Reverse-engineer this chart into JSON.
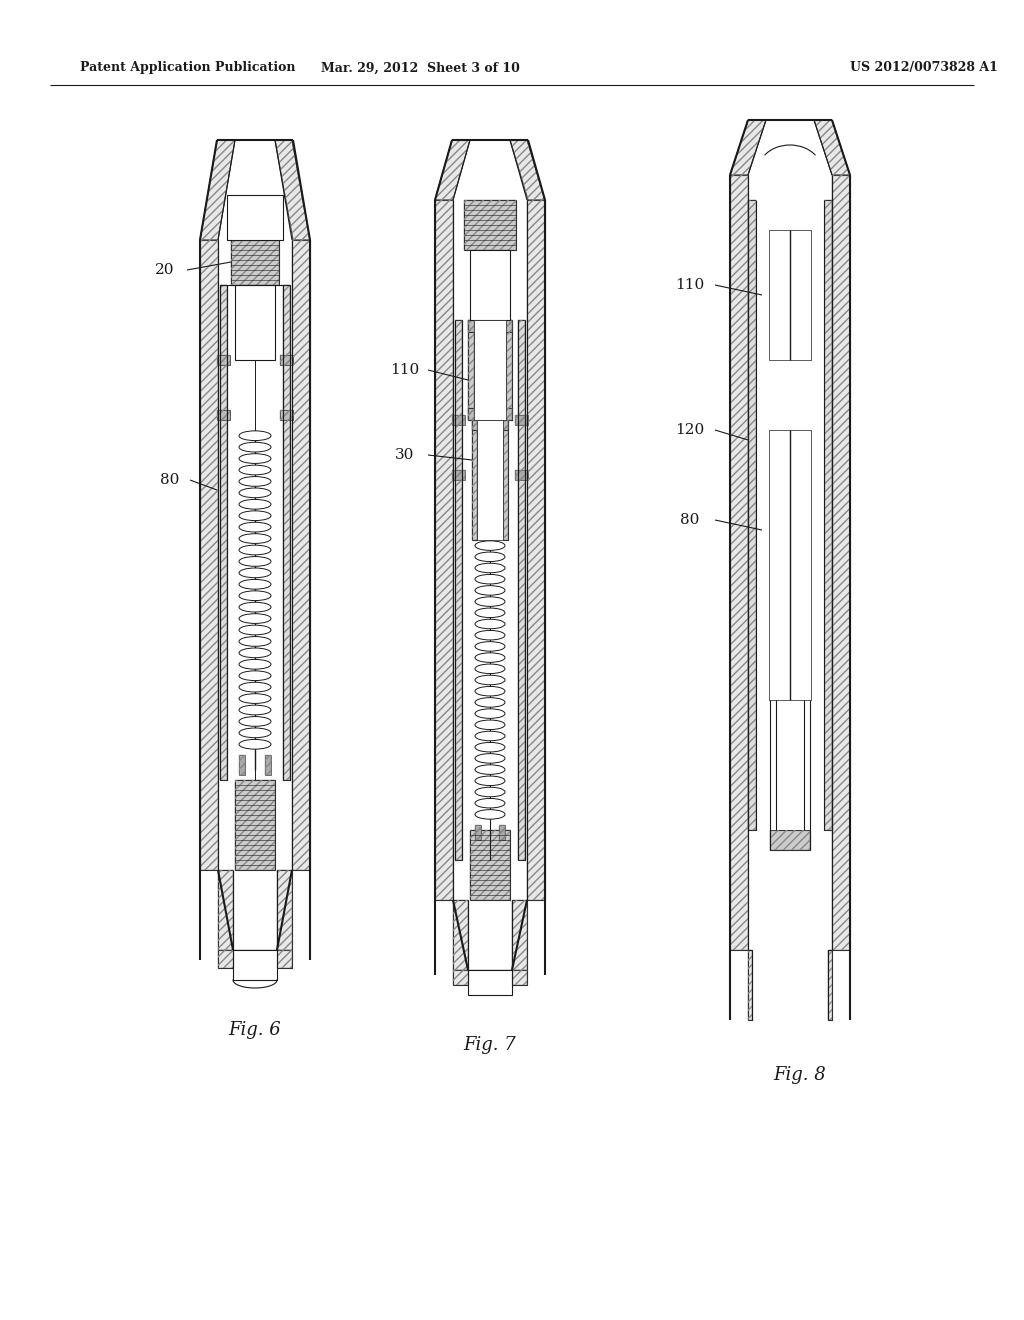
{
  "bg_color": "#ffffff",
  "line_color": "#1a1a1a",
  "header_left": "Patent Application Publication",
  "header_center": "Mar. 29, 2012  Sheet 3 of 10",
  "header_right": "US 2012/0073828 A1",
  "fig6_label": "Fig. 6",
  "fig7_label": "Fig. 7",
  "fig8_label": "Fig. 8",
  "label_20": "20",
  "label_80_fig6": "80",
  "label_110_fig7": "110",
  "label_30_fig7": "30",
  "label_110_fig8": "110",
  "label_120_fig8": "120",
  "label_80_fig8": "80"
}
